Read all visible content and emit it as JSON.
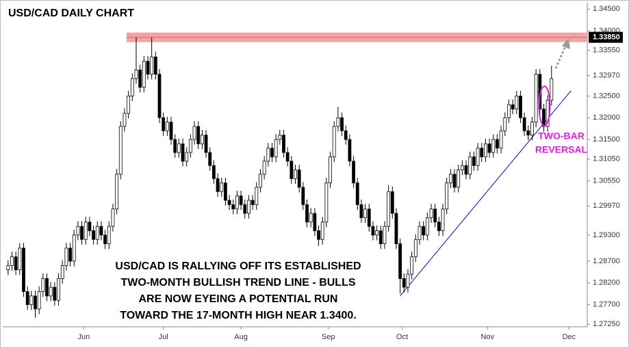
{
  "chart_data": {
    "type": "candlestick",
    "title": "USD/CAD DAILY CHART",
    "annotation": [
      "USD/CAD IS RALLYING OFF ITS ESTABLISHED",
      "TWO-MONTH BULLISH TREND LINE - BULLS",
      "ARE NOW EYEING A POTENTIAL RUN",
      "TOWARD THE 17-MONTH HIGH NEAR 1.3400."
    ],
    "callout": [
      "TWO-BAR",
      "REVERSAL"
    ],
    "callout_color": "#e01ee0",
    "up_color": "#ffffff",
    "down_color": "#000000",
    "open": [
      1.285,
      1.286,
      1.288,
      1.285,
      1.29,
      1.28,
      1.277,
      1.279,
      1.276,
      1.28,
      1.283,
      1.279,
      1.281,
      1.278,
      1.283,
      1.286,
      1.29,
      1.287,
      1.293,
      1.295,
      1.292,
      1.296,
      1.294,
      1.292,
      1.295,
      1.293,
      1.291,
      1.295,
      1.299,
      1.307,
      1.318,
      1.321,
      1.325,
      1.329,
      1.331,
      1.327,
      1.333,
      1.33,
      1.334,
      1.33,
      1.32,
      1.317,
      1.319,
      1.315,
      1.312,
      1.314,
      1.31,
      1.312,
      1.315,
      1.318,
      1.314,
      1.316,
      1.312,
      1.309,
      1.306,
      1.303,
      1.305,
      1.301,
      1.3,
      1.299,
      1.302,
      1.3,
      1.298,
      1.301,
      1.3,
      1.304,
      1.307,
      1.31,
      1.313,
      1.311,
      1.315,
      1.316,
      1.312,
      1.31,
      1.306,
      1.308,
      1.304,
      1.3,
      1.296,
      1.298,
      1.294,
      1.292,
      1.296,
      1.305,
      1.311,
      1.318,
      1.32,
      1.317,
      1.315,
      1.31,
      1.305,
      1.3,
      1.297,
      1.299,
      1.295,
      1.293,
      1.294,
      1.291,
      1.295,
      1.303,
      1.298,
      1.291,
      1.283,
      1.281,
      1.284,
      1.288,
      1.292,
      1.295,
      1.293,
      1.297,
      1.299,
      1.296,
      1.294,
      1.299,
      1.305,
      1.307,
      1.304,
      1.308,
      1.309,
      1.307,
      1.311,
      1.309,
      1.313,
      1.311,
      1.314,
      1.312,
      1.315,
      1.313,
      1.317,
      1.32,
      1.323,
      1.322,
      1.325,
      1.32,
      1.317,
      1.316,
      1.319,
      1.33,
      1.322,
      1.318,
      1.324
    ],
    "high": [
      1.2872,
      1.2892,
      1.2892,
      1.2912,
      1.2912,
      1.2812,
      1.2802,
      1.2802,
      1.2812,
      1.2842,
      1.2842,
      1.2822,
      1.2822,
      1.2842,
      1.2872,
      1.2912,
      1.2912,
      1.2942,
      1.2962,
      1.2962,
      1.2972,
      1.2972,
      1.2952,
      1.2962,
      1.2962,
      1.2942,
      1.2962,
      1.3002,
      1.3082,
      1.3192,
      1.3222,
      1.3262,
      1.3302,
      1.3385,
      1.3322,
      1.3342,
      1.3342,
      1.3385,
      1.3352,
      1.3312,
      1.3212,
      1.3202,
      1.3202,
      1.3162,
      1.3152,
      1.3152,
      1.3132,
      1.3162,
      1.3192,
      1.3192,
      1.3172,
      1.3172,
      1.3132,
      1.3102,
      1.3072,
      1.3062,
      1.3062,
      1.3022,
      1.3012,
      1.3032,
      1.3032,
      1.3012,
      1.3022,
      1.3022,
      1.3052,
      1.3082,
      1.3112,
      1.3142,
      1.3142,
      1.3162,
      1.3172,
      1.3172,
      1.3132,
      1.3112,
      1.3092,
      1.3092,
      1.3052,
      1.3012,
      1.2992,
      1.2992,
      1.2952,
      1.2972,
      1.3062,
      1.3122,
      1.3192,
      1.3225,
      1.3212,
      1.3182,
      1.3162,
      1.3112,
      1.3062,
      1.3012,
      1.3002,
      1.3002,
      1.2962,
      1.2952,
      1.2952,
      1.2962,
      1.3045,
      1.3042,
      1.2992,
      1.2922,
      1.2842,
      1.2852,
      1.2892,
      1.2932,
      1.2962,
      1.2962,
      1.2982,
      1.3002,
      1.3002,
      1.2972,
      1.3002,
      1.3062,
      1.3082,
      1.3082,
      1.3092,
      1.3102,
      1.3102,
      1.3122,
      1.3122,
      1.3142,
      1.3142,
      1.3152,
      1.3152,
      1.3162,
      1.3162,
      1.3182,
      1.3212,
      1.3242,
      1.3242,
      1.3262,
      1.3262,
      1.3212,
      1.3182,
      1.3202,
      1.3312,
      1.3312,
      1.3232,
      1.3252,
      1.332
    ],
    "low": [
      1.2838,
      1.2848,
      1.2838,
      1.2838,
      1.2788,
      1.2758,
      1.2758,
      1.274,
      1.2748,
      1.2788,
      1.2778,
      1.2778,
      1.2768,
      1.2768,
      1.2818,
      1.2848,
      1.2858,
      1.2858,
      1.2918,
      1.2908,
      1.2908,
      1.2928,
      1.2908,
      1.2908,
      1.2918,
      1.2898,
      1.2898,
      1.2938,
      1.2978,
      1.3058,
      1.3168,
      1.3198,
      1.3238,
      1.3278,
      1.3258,
      1.3258,
      1.3288,
      1.3288,
      1.3288,
      1.3188,
      1.3158,
      1.3158,
      1.3138,
      1.3108,
      1.3108,
      1.3088,
      1.3088,
      1.3108,
      1.3138,
      1.3128,
      1.3128,
      1.3108,
      1.3078,
      1.3048,
      1.3018,
      1.3018,
      1.2998,
      1.2988,
      1.2978,
      1.2978,
      1.2988,
      1.2968,
      1.2968,
      1.2988,
      1.2988,
      1.3028,
      1.3058,
      1.3088,
      1.3098,
      1.3098,
      1.3138,
      1.3108,
      1.3088,
      1.3048,
      1.3048,
      1.3028,
      1.2988,
      1.2948,
      1.2948,
      1.2928,
      1.2905,
      1.2908,
      1.2948,
      1.3038,
      1.3098,
      1.3168,
      1.3158,
      1.3138,
      1.3088,
      1.3038,
      1.2988,
      1.2958,
      1.2958,
      1.2938,
      1.2918,
      1.2918,
      1.2898,
      1.2898,
      1.2938,
      1.2968,
      1.2898,
      1.2795,
      1.2798,
      1.2798,
      1.2828,
      1.2868,
      1.2908,
      1.2918,
      1.2918,
      1.2958,
      1.2948,
      1.2928,
      1.2928,
      1.2978,
      1.3038,
      1.3028,
      1.3028,
      1.3068,
      1.3058,
      1.3058,
      1.3078,
      1.3078,
      1.3098,
      1.3098,
      1.3108,
      1.3108,
      1.3118,
      1.3118,
      1.3158,
      1.3188,
      1.3208,
      1.3208,
      1.3188,
      1.3158,
      1.3148,
      1.3148,
      1.3178,
      1.3208,
      1.3168,
      1.3168,
      1.3228
    ],
    "close": [
      1.286,
      1.288,
      1.285,
      1.29,
      1.28,
      1.277,
      1.279,
      1.276,
      1.28,
      1.283,
      1.279,
      1.281,
      1.278,
      1.283,
      1.286,
      1.29,
      1.287,
      1.293,
      1.295,
      1.292,
      1.296,
      1.294,
      1.292,
      1.295,
      1.293,
      1.291,
      1.295,
      1.299,
      1.307,
      1.318,
      1.321,
      1.325,
      1.329,
      1.331,
      1.327,
      1.333,
      1.33,
      1.334,
      1.33,
      1.32,
      1.317,
      1.319,
      1.315,
      1.312,
      1.314,
      1.31,
      1.312,
      1.315,
      1.318,
      1.314,
      1.316,
      1.312,
      1.309,
      1.306,
      1.303,
      1.305,
      1.301,
      1.3,
      1.299,
      1.302,
      1.3,
      1.298,
      1.301,
      1.3,
      1.304,
      1.307,
      1.31,
      1.313,
      1.311,
      1.315,
      1.316,
      1.312,
      1.31,
      1.306,
      1.308,
      1.304,
      1.3,
      1.296,
      1.298,
      1.294,
      1.292,
      1.296,
      1.305,
      1.311,
      1.318,
      1.32,
      1.317,
      1.315,
      1.31,
      1.305,
      1.3,
      1.297,
      1.299,
      1.295,
      1.293,
      1.294,
      1.291,
      1.295,
      1.303,
      1.298,
      1.291,
      1.283,
      1.281,
      1.284,
      1.288,
      1.292,
      1.295,
      1.293,
      1.297,
      1.299,
      1.296,
      1.294,
      1.299,
      1.305,
      1.307,
      1.304,
      1.308,
      1.309,
      1.307,
      1.311,
      1.309,
      1.313,
      1.311,
      1.314,
      1.312,
      1.315,
      1.313,
      1.317,
      1.32,
      1.323,
      1.322,
      1.325,
      1.32,
      1.317,
      1.316,
      1.319,
      1.33,
      1.322,
      1.318,
      1.324,
      1.329
    ],
    "xlim": [
      -1.2,
      149.2
    ],
    "xticks": [
      {
        "value": 19.5,
        "label": "Jun"
      },
      {
        "value": 40,
        "label": "Jul"
      },
      {
        "value": 60,
        "label": "Aug"
      },
      {
        "value": 82.5,
        "label": "Sep"
      },
      {
        "value": 101.5,
        "label": "Oct"
      },
      {
        "value": 123.5,
        "label": "Nov"
      },
      {
        "value": 144.5,
        "label": "Dec"
      }
    ],
    "ylim": [
      1.2719,
      1.3463
    ],
    "yticks": [
      {
        "value": 1.345,
        "label": "1.34500"
      },
      {
        "value": 1.34,
        "label": "1.34000"
      },
      {
        "value": 1.3355,
        "label": "1.33550"
      },
      {
        "value": 1.3297,
        "label": "1.32970"
      },
      {
        "value": 1.325,
        "label": "1.32500"
      },
      {
        "value": 1.32,
        "label": "1.32000"
      },
      {
        "value": 1.315,
        "label": "1.31500"
      },
      {
        "value": 1.3105,
        "label": "1.31050"
      },
      {
        "value": 1.3055,
        "label": "1.30550"
      },
      {
        "value": 1.2997,
        "label": "1.29970"
      },
      {
        "value": 1.293,
        "label": "1.29300"
      },
      {
        "value": 1.287,
        "label": "1.28700"
      },
      {
        "value": 1.282,
        "label": "1.28200"
      },
      {
        "value": 1.277,
        "label": "1.27700"
      },
      {
        "value": 1.2725,
        "label": "1.27250"
      }
    ],
    "resistance": {
      "value": 1.3385,
      "label": "1.33850"
    },
    "resistance_zone": [
      1.3374,
      1.3396
    ],
    "zone_color": "#f4a3a3",
    "trendline": {
      "x": [
        101,
        145
      ],
      "y": [
        1.279,
        1.3262
      ],
      "color": "#2a2ae0"
    }
  }
}
